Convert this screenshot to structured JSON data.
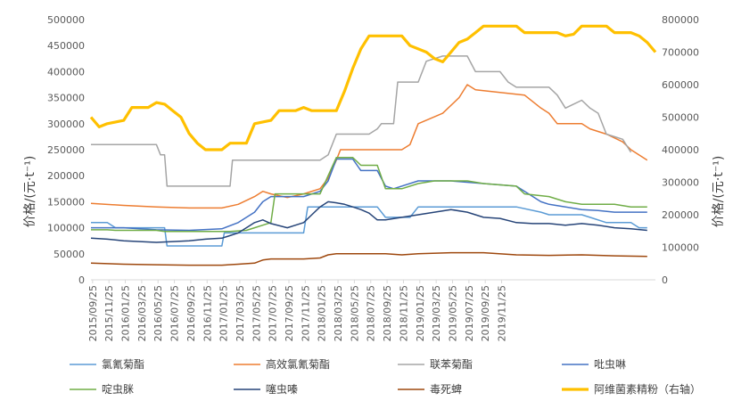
{
  "chart_data": {
    "type": "line",
    "title": "",
    "ylabel_left": "价格/(元·t⁻¹)",
    "ylabel_right": "价格/(元·t⁻¹)",
    "y_left_ticks": [
      "0",
      "50000",
      "100000",
      "150000",
      "200000",
      "250000",
      "300000",
      "350000",
      "400000",
      "450000",
      "500000"
    ],
    "y_right_ticks": [
      "0",
      "100000",
      "200000",
      "300000",
      "400000",
      "500000",
      "600000",
      "700000",
      "800000"
    ],
    "ylim_left": [
      0,
      500000
    ],
    "ylim_right": [
      0,
      800000
    ],
    "x_ticks": [
      "2015/09/25",
      "2015/11/25",
      "2016/01/25",
      "2016/03/25",
      "2016/05/25",
      "2016/07/25",
      "2016/09/25",
      "2016/11/25",
      "2017/01/25",
      "2017/03/25",
      "2017/05/25",
      "2017/07/25",
      "2017/09/25",
      "2017/11/25",
      "2018/01/25",
      "2018/03/25",
      "2018/05/25",
      "2018/07/25",
      "2018/09/25",
      "2018/11/25",
      "2019/01/25",
      "2019/03/25",
      "2019/05/25",
      "2019/07/25",
      "2019/09/25",
      "2019/11/25"
    ],
    "grid": false,
    "legend_position": "bottom",
    "series": [
      {
        "name": "氯氰菊酯",
        "color": "#5b9bd5",
        "axis": "left",
        "points": [
          [
            0,
            110000
          ],
          [
            2,
            110000
          ],
          [
            3,
            100000
          ],
          [
            9,
            100000
          ],
          [
            9.3,
            65000
          ],
          [
            16,
            65000
          ],
          [
            16.3,
            90000
          ],
          [
            23,
            90000
          ],
          [
            26,
            90000
          ],
          [
            26.5,
            140000
          ],
          [
            35,
            140000
          ],
          [
            36,
            120000
          ],
          [
            39,
            120000
          ],
          [
            40,
            140000
          ],
          [
            46,
            140000
          ],
          [
            49,
            140000
          ],
          [
            52,
            140000
          ],
          [
            55,
            130000
          ],
          [
            56,
            125000
          ],
          [
            60,
            125000
          ],
          [
            61,
            120000
          ],
          [
            63,
            110000
          ],
          [
            66,
            110000
          ],
          [
            67,
            100000
          ],
          [
            68,
            100000
          ]
        ]
      },
      {
        "name": "高效氯氰菊酯",
        "color": "#ed7d31",
        "axis": "left",
        "points": [
          [
            0,
            147000
          ],
          [
            4,
            143000
          ],
          [
            8,
            140000
          ],
          [
            12,
            138000
          ],
          [
            16,
            138000
          ],
          [
            18,
            145000
          ],
          [
            20,
            160000
          ],
          [
            21,
            170000
          ],
          [
            22,
            165000
          ],
          [
            24,
            158000
          ],
          [
            26,
            165000
          ],
          [
            28,
            175000
          ],
          [
            29,
            195000
          ],
          [
            30,
            230000
          ],
          [
            30.5,
            250000
          ],
          [
            38,
            250000
          ],
          [
            39,
            260000
          ],
          [
            40,
            300000
          ],
          [
            43,
            320000
          ],
          [
            45,
            350000
          ],
          [
            46,
            375000
          ],
          [
            47,
            365000
          ],
          [
            50,
            360000
          ],
          [
            53,
            355000
          ],
          [
            55,
            330000
          ],
          [
            56,
            320000
          ],
          [
            57,
            300000
          ],
          [
            60,
            300000
          ],
          [
            61,
            290000
          ],
          [
            63,
            280000
          ],
          [
            65,
            265000
          ],
          [
            66,
            250000
          ],
          [
            68,
            230000
          ]
        ]
      },
      {
        "name": "联苯菊酯",
        "color": "#a5a5a5",
        "axis": "left",
        "points": [
          [
            0,
            260000
          ],
          [
            8,
            260000
          ],
          [
            8.5,
            240000
          ],
          [
            9,
            240000
          ],
          [
            9.3,
            180000
          ],
          [
            17,
            180000
          ],
          [
            17.3,
            230000
          ],
          [
            28,
            230000
          ],
          [
            29,
            240000
          ],
          [
            30,
            280000
          ],
          [
            34,
            280000
          ],
          [
            35,
            290000
          ],
          [
            35.5,
            300000
          ],
          [
            37,
            300000
          ],
          [
            37.5,
            380000
          ],
          [
            40,
            380000
          ],
          [
            41,
            420000
          ],
          [
            43,
            430000
          ],
          [
            46,
            430000
          ],
          [
            47,
            400000
          ],
          [
            50,
            400000
          ],
          [
            51,
            380000
          ],
          [
            52,
            370000
          ],
          [
            56,
            370000
          ],
          [
            57,
            355000
          ],
          [
            58,
            330000
          ],
          [
            60,
            345000
          ],
          [
            61,
            330000
          ],
          [
            62,
            320000
          ],
          [
            63,
            280000
          ],
          [
            64,
            275000
          ],
          [
            65,
            270000
          ],
          [
            66,
            245000
          ]
        ]
      },
      {
        "name": "吡虫啉",
        "color": "#4472c4",
        "axis": "left",
        "points": [
          [
            0,
            100000
          ],
          [
            4,
            100000
          ],
          [
            8,
            96000
          ],
          [
            12,
            95000
          ],
          [
            16,
            98000
          ],
          [
            18,
            110000
          ],
          [
            20,
            130000
          ],
          [
            21,
            150000
          ],
          [
            22,
            160000
          ],
          [
            26,
            160000
          ],
          [
            28,
            170000
          ],
          [
            29,
            190000
          ],
          [
            30,
            232000
          ],
          [
            32,
            232000
          ],
          [
            33,
            210000
          ],
          [
            35,
            210000
          ],
          [
            36,
            180000
          ],
          [
            37,
            175000
          ],
          [
            40,
            190000
          ],
          [
            44,
            190000
          ],
          [
            48,
            185000
          ],
          [
            52,
            180000
          ],
          [
            55,
            150000
          ],
          [
            56,
            145000
          ],
          [
            58,
            140000
          ],
          [
            60,
            135000
          ],
          [
            62,
            133000
          ],
          [
            64,
            130000
          ],
          [
            68,
            130000
          ]
        ]
      },
      {
        "name": "啶虫脒",
        "color": "#70ad47",
        "axis": "left",
        "points": [
          [
            0,
            96000
          ],
          [
            2,
            96000
          ],
          [
            3,
            95000
          ],
          [
            8,
            95000
          ],
          [
            9,
            93000
          ],
          [
            16,
            93000
          ],
          [
            17,
            93000
          ],
          [
            19,
            95000
          ],
          [
            20,
            100000
          ],
          [
            22,
            110000
          ],
          [
            22.5,
            165000
          ],
          [
            26,
            165000
          ],
          [
            28,
            165000
          ],
          [
            29,
            200000
          ],
          [
            30,
            235000
          ],
          [
            32,
            235000
          ],
          [
            33,
            220000
          ],
          [
            35,
            220000
          ],
          [
            36,
            175000
          ],
          [
            38,
            175000
          ],
          [
            40,
            185000
          ],
          [
            42,
            190000
          ],
          [
            44,
            190000
          ],
          [
            46,
            190000
          ],
          [
            48,
            185000
          ],
          [
            52,
            180000
          ],
          [
            53,
            165000
          ],
          [
            56,
            160000
          ],
          [
            58,
            150000
          ],
          [
            60,
            145000
          ],
          [
            64,
            145000
          ],
          [
            66,
            140000
          ],
          [
            68,
            140000
          ]
        ]
      },
      {
        "name": "噻虫嗪",
        "color": "#264478",
        "axis": "left",
        "points": [
          [
            0,
            80000
          ],
          [
            2,
            78000
          ],
          [
            4,
            75000
          ],
          [
            8,
            72000
          ],
          [
            12,
            75000
          ],
          [
            14,
            78000
          ],
          [
            16,
            80000
          ],
          [
            17,
            85000
          ],
          [
            18,
            90000
          ],
          [
            19,
            100000
          ],
          [
            20,
            110000
          ],
          [
            21,
            115000
          ],
          [
            22,
            108000
          ],
          [
            24,
            100000
          ],
          [
            26,
            110000
          ],
          [
            27,
            125000
          ],
          [
            28,
            140000
          ],
          [
            29,
            150000
          ],
          [
            30,
            148000
          ],
          [
            31,
            145000
          ],
          [
            32,
            140000
          ],
          [
            33,
            135000
          ],
          [
            34,
            128000
          ],
          [
            35,
            115000
          ],
          [
            36,
            115000
          ],
          [
            38,
            120000
          ],
          [
            40,
            125000
          ],
          [
            42,
            130000
          ],
          [
            44,
            135000
          ],
          [
            46,
            130000
          ],
          [
            48,
            120000
          ],
          [
            50,
            118000
          ],
          [
            52,
            110000
          ],
          [
            54,
            108000
          ],
          [
            56,
            108000
          ],
          [
            58,
            105000
          ],
          [
            60,
            108000
          ],
          [
            62,
            105000
          ],
          [
            64,
            100000
          ],
          [
            66,
            98000
          ],
          [
            68,
            95000
          ]
        ]
      },
      {
        "name": "毒死蜱",
        "color": "#9e480e",
        "axis": "left",
        "points": [
          [
            0,
            32000
          ],
          [
            4,
            30000
          ],
          [
            8,
            29000
          ],
          [
            12,
            28000
          ],
          [
            16,
            28000
          ],
          [
            18,
            30000
          ],
          [
            20,
            32000
          ],
          [
            21,
            38000
          ],
          [
            22,
            40000
          ],
          [
            26,
            40000
          ],
          [
            28,
            42000
          ],
          [
            29,
            48000
          ],
          [
            30,
            50000
          ],
          [
            36,
            50000
          ],
          [
            38,
            48000
          ],
          [
            40,
            50000
          ],
          [
            44,
            52000
          ],
          [
            48,
            52000
          ],
          [
            52,
            48000
          ],
          [
            56,
            47000
          ],
          [
            60,
            48000
          ],
          [
            64,
            46000
          ],
          [
            68,
            45000
          ]
        ]
      },
      {
        "name": "阿维菌素精粉（右轴）",
        "color": "#ffc000",
        "axis": "right",
        "points": [
          [
            0,
            500000
          ],
          [
            1,
            470000
          ],
          [
            2,
            480000
          ],
          [
            4,
            490000
          ],
          [
            5,
            530000
          ],
          [
            7,
            530000
          ],
          [
            8,
            545000
          ],
          [
            9,
            540000
          ],
          [
            10,
            520000
          ],
          [
            11,
            500000
          ],
          [
            12,
            450000
          ],
          [
            13,
            420000
          ],
          [
            14,
            400000
          ],
          [
            16,
            400000
          ],
          [
            17,
            420000
          ],
          [
            19,
            420000
          ],
          [
            20,
            480000
          ],
          [
            22,
            490000
          ],
          [
            23,
            520000
          ],
          [
            25,
            520000
          ],
          [
            26,
            530000
          ],
          [
            27,
            520000
          ],
          [
            30,
            520000
          ],
          [
            31,
            580000
          ],
          [
            32,
            650000
          ],
          [
            33,
            710000
          ],
          [
            34,
            750000
          ],
          [
            38,
            750000
          ],
          [
            39,
            720000
          ],
          [
            41,
            700000
          ],
          [
            42,
            680000
          ],
          [
            43,
            670000
          ],
          [
            44,
            700000
          ],
          [
            45,
            730000
          ],
          [
            46,
            740000
          ],
          [
            47,
            760000
          ],
          [
            48,
            780000
          ],
          [
            52,
            780000
          ],
          [
            53,
            760000
          ],
          [
            57,
            760000
          ],
          [
            58,
            750000
          ],
          [
            59,
            755000
          ],
          [
            60,
            780000
          ],
          [
            63,
            780000
          ],
          [
            64,
            760000
          ],
          [
            66,
            760000
          ],
          [
            67,
            750000
          ],
          [
            68,
            730000
          ],
          [
            69,
            700000
          ]
        ]
      }
    ]
  }
}
